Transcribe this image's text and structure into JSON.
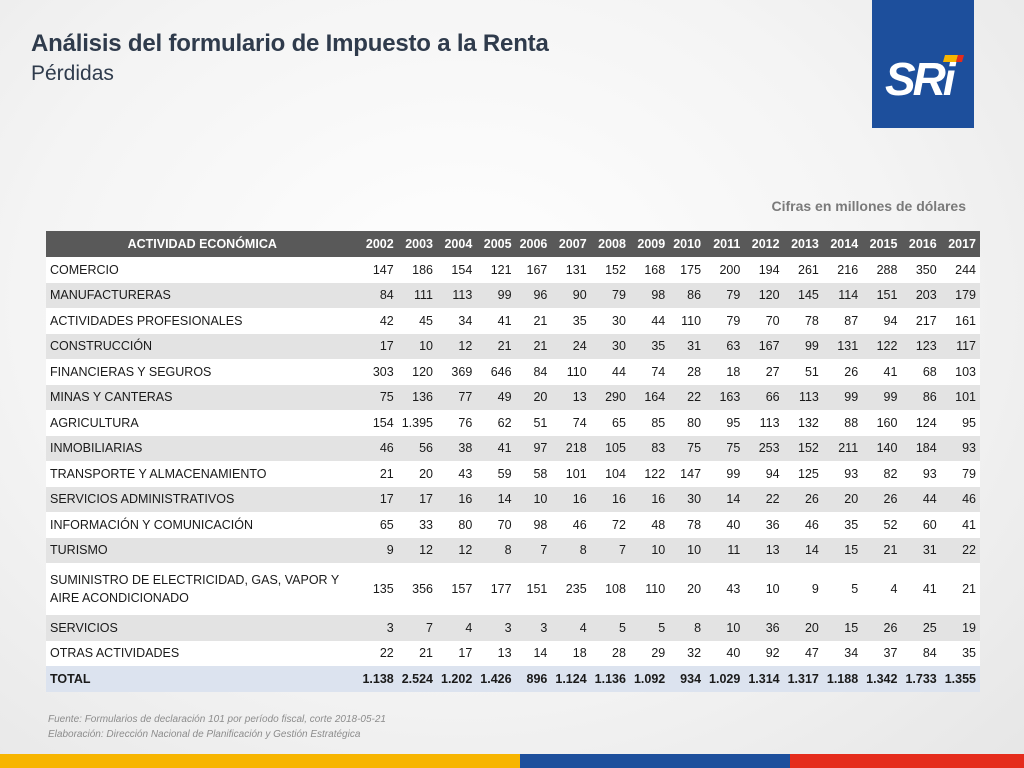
{
  "header": {
    "title": "Análisis del formulario de Impuesto a la Renta",
    "subtitle": "Pérdidas"
  },
  "logo": {
    "text": "SRi",
    "color": "#1d4f9c"
  },
  "units_note": "Cifras en millones de dólares",
  "table": {
    "columns": [
      "ACTIVIDAD ECONÓMICA",
      "2002",
      "2003",
      "2004",
      "2005",
      "2006",
      "2007",
      "2008",
      "2009",
      "2010",
      "2011",
      "2012",
      "2013",
      "2014",
      "2015",
      "2016",
      "2017"
    ],
    "rows": [
      [
        "COMERCIO",
        "147",
        "186",
        "154",
        "121",
        "167",
        "131",
        "152",
        "168",
        "175",
        "200",
        "194",
        "261",
        "216",
        "288",
        "350",
        "244"
      ],
      [
        "MANUFACTURERAS",
        "84",
        "111",
        "113",
        "99",
        "96",
        "90",
        "79",
        "98",
        "86",
        "79",
        "120",
        "145",
        "114",
        "151",
        "203",
        "179"
      ],
      [
        "ACTIVIDADES PROFESIONALES",
        "42",
        "45",
        "34",
        "41",
        "21",
        "35",
        "30",
        "44",
        "110",
        "79",
        "70",
        "78",
        "87",
        "94",
        "217",
        "161"
      ],
      [
        "CONSTRUCCIÓN",
        "17",
        "10",
        "12",
        "21",
        "21",
        "24",
        "30",
        "35",
        "31",
        "63",
        "167",
        "99",
        "131",
        "122",
        "123",
        "117"
      ],
      [
        "FINANCIERAS Y SEGUROS",
        "303",
        "120",
        "369",
        "646",
        "84",
        "110",
        "44",
        "74",
        "28",
        "18",
        "27",
        "51",
        "26",
        "41",
        "68",
        "103"
      ],
      [
        "MINAS Y CANTERAS",
        "75",
        "136",
        "77",
        "49",
        "20",
        "13",
        "290",
        "164",
        "22",
        "163",
        "66",
        "113",
        "99",
        "99",
        "86",
        "101"
      ],
      [
        "AGRICULTURA",
        "154",
        "1.395",
        "76",
        "62",
        "51",
        "74",
        "65",
        "85",
        "80",
        "95",
        "113",
        "132",
        "88",
        "160",
        "124",
        "95"
      ],
      [
        "INMOBILIARIAS",
        "46",
        "56",
        "38",
        "41",
        "97",
        "218",
        "105",
        "83",
        "75",
        "75",
        "253",
        "152",
        "211",
        "140",
        "184",
        "93"
      ],
      [
        "TRANSPORTE Y ALMACENAMIENTO",
        "21",
        "20",
        "43",
        "59",
        "58",
        "101",
        "104",
        "122",
        "147",
        "99",
        "94",
        "125",
        "93",
        "82",
        "93",
        "79"
      ],
      [
        "SERVICIOS ADMINISTRATIVOS",
        "17",
        "17",
        "16",
        "14",
        "10",
        "16",
        "16",
        "16",
        "30",
        "14",
        "22",
        "26",
        "20",
        "26",
        "44",
        "46"
      ],
      [
        "INFORMACIÓN Y COMUNICACIÓN",
        "65",
        "33",
        "80",
        "70",
        "98",
        "46",
        "72",
        "48",
        "78",
        "40",
        "36",
        "46",
        "35",
        "52",
        "60",
        "41"
      ],
      [
        "TURISMO",
        "9",
        "12",
        "12",
        "8",
        "7",
        "8",
        "7",
        "10",
        "10",
        "11",
        "13",
        "14",
        "15",
        "21",
        "31",
        "22"
      ],
      [
        "SUMINISTRO DE ELECTRICIDAD, GAS, VAPOR Y AIRE ACONDICIONADO",
        "135",
        "356",
        "157",
        "177",
        "151",
        "235",
        "108",
        "110",
        "20",
        "43",
        "10",
        "9",
        "5",
        "4",
        "41",
        "21"
      ],
      [
        "SERVICIOS",
        "3",
        "7",
        "4",
        "3",
        "3",
        "4",
        "5",
        "5",
        "8",
        "10",
        "36",
        "20",
        "15",
        "26",
        "25",
        "19"
      ],
      [
        "OTRAS ACTIVIDADES",
        "22",
        "21",
        "17",
        "13",
        "14",
        "18",
        "28",
        "29",
        "32",
        "40",
        "92",
        "47",
        "34",
        "37",
        "84",
        "35"
      ]
    ],
    "total": [
      "TOTAL",
      "1.138",
      "2.524",
      "1.202",
      "1.426",
      "896",
      "1.124",
      "1.136",
      "1.092",
      "934",
      "1.029",
      "1.314",
      "1.317",
      "1.188",
      "1.342",
      "1.733",
      "1.355"
    ]
  },
  "footer": {
    "source": "Fuente: Formularios de declaración 101 por período fiscal, corte 2018-05-21",
    "elaboration": "Elaboración: Dirección Nacional de Planificación y Gestión Estratégica"
  },
  "brand_colors": {
    "yellow": "#f7b500",
    "blue": "#1d4f9c",
    "red": "#e52c1c"
  }
}
